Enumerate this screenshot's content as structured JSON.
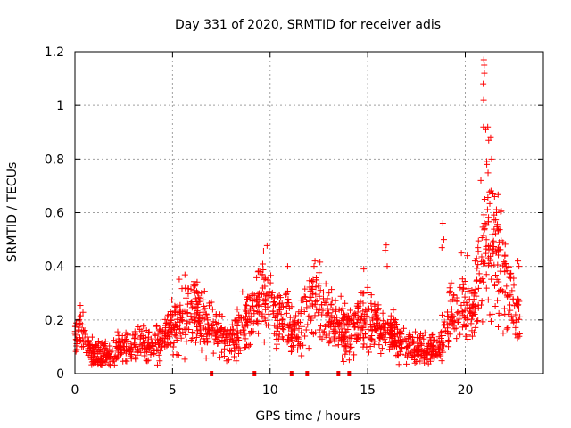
{
  "chart_data": {
    "type": "scatter",
    "title": "Day 331 of 2020, SRMTID for receiver adis",
    "xlabel": "GPS time / hours",
    "ylabel": "SRMTID / TECUs",
    "xlim": [
      0,
      24
    ],
    "ylim": [
      0,
      1.2
    ],
    "xticks": [
      {
        "value": 0,
        "label": "0"
      },
      {
        "value": 5,
        "label": "5"
      },
      {
        "value": 10,
        "label": "10"
      },
      {
        "value": 15,
        "label": "15"
      },
      {
        "value": 20,
        "label": "20"
      }
    ],
    "yticks": [
      {
        "value": 0,
        "label": "0"
      },
      {
        "value": 0.2,
        "label": "0.2"
      },
      {
        "value": 0.4,
        "label": "0.4"
      },
      {
        "value": 0.6,
        "label": "0.6"
      },
      {
        "value": 0.8,
        "label": "0.8"
      },
      {
        "value": 1.0,
        "label": "1"
      },
      {
        "value": 1.2,
        "label": "1.2"
      }
    ],
    "grid": true,
    "marker": "plus",
    "color": "#ff0000",
    "profile": [
      {
        "x": 0.0,
        "y": 0.13
      },
      {
        "x": 0.3,
        "y": 0.18
      },
      {
        "x": 0.5,
        "y": 0.14
      },
      {
        "x": 0.8,
        "y": 0.08
      },
      {
        "x": 1.5,
        "y": 0.07
      },
      {
        "x": 2.5,
        "y": 0.09
      },
      {
        "x": 3.5,
        "y": 0.12
      },
      {
        "x": 4.3,
        "y": 0.1
      },
      {
        "x": 5.0,
        "y": 0.17
      },
      {
        "x": 5.6,
        "y": 0.22
      },
      {
        "x": 6.2,
        "y": 0.24
      },
      {
        "x": 6.6,
        "y": 0.18
      },
      {
        "x": 7.3,
        "y": 0.15
      },
      {
        "x": 8.0,
        "y": 0.12
      },
      {
        "x": 8.7,
        "y": 0.18
      },
      {
        "x": 9.2,
        "y": 0.23
      },
      {
        "x": 9.6,
        "y": 0.3
      },
      {
        "x": 10.2,
        "y": 0.22
      },
      {
        "x": 10.8,
        "y": 0.2
      },
      {
        "x": 11.4,
        "y": 0.15
      },
      {
        "x": 12.0,
        "y": 0.25
      },
      {
        "x": 12.5,
        "y": 0.28
      },
      {
        "x": 13.0,
        "y": 0.2
      },
      {
        "x": 13.6,
        "y": 0.17
      },
      {
        "x": 14.2,
        "y": 0.15
      },
      {
        "x": 14.8,
        "y": 0.22
      },
      {
        "x": 15.3,
        "y": 0.19
      },
      {
        "x": 15.9,
        "y": 0.15
      },
      {
        "x": 16.6,
        "y": 0.12
      },
      {
        "x": 17.3,
        "y": 0.1
      },
      {
        "x": 18.0,
        "y": 0.09
      },
      {
        "x": 18.6,
        "y": 0.09
      },
      {
        "x": 18.9,
        "y": 0.15
      },
      {
        "x": 19.3,
        "y": 0.22
      },
      {
        "x": 19.8,
        "y": 0.25
      },
      {
        "x": 20.3,
        "y": 0.2
      },
      {
        "x": 20.8,
        "y": 0.35
      },
      {
        "x": 21.1,
        "y": 0.55
      },
      {
        "x": 21.4,
        "y": 0.5
      },
      {
        "x": 21.8,
        "y": 0.4
      },
      {
        "x": 22.2,
        "y": 0.3
      },
      {
        "x": 22.6,
        "y": 0.22
      },
      {
        "x": 22.8,
        "y": 0.2
      }
    ],
    "data_range": [
      0.0,
      22.8
    ],
    "n_points": 1700,
    "extreme_points": [
      {
        "x": 20.95,
        "y": 1.17
      },
      {
        "x": 20.97,
        "y": 1.15
      },
      {
        "x": 20.98,
        "y": 1.12
      },
      {
        "x": 20.92,
        "y": 1.08
      },
      {
        "x": 20.94,
        "y": 1.02
      },
      {
        "x": 20.93,
        "y": 0.92
      },
      {
        "x": 21.05,
        "y": 0.91
      },
      {
        "x": 21.15,
        "y": 0.92
      },
      {
        "x": 21.2,
        "y": 0.87
      },
      {
        "x": 21.3,
        "y": 0.88
      },
      {
        "x": 21.35,
        "y": 0.8
      },
      {
        "x": 21.1,
        "y": 0.78
      },
      {
        "x": 21.4,
        "y": 0.67
      },
      {
        "x": 21.5,
        "y": 0.66
      },
      {
        "x": 20.8,
        "y": 0.72
      },
      {
        "x": 21.6,
        "y": 0.6
      },
      {
        "x": 21.0,
        "y": 0.65
      },
      {
        "x": 18.85,
        "y": 0.56
      },
      {
        "x": 18.9,
        "y": 0.5
      },
      {
        "x": 18.8,
        "y": 0.47
      },
      {
        "x": 15.95,
        "y": 0.48
      },
      {
        "x": 15.9,
        "y": 0.46
      },
      {
        "x": 16.0,
        "y": 0.4
      },
      {
        "x": 12.3,
        "y": 0.42
      },
      {
        "x": 12.25,
        "y": 0.4
      },
      {
        "x": 10.9,
        "y": 0.4
      },
      {
        "x": 14.8,
        "y": 0.39
      },
      {
        "x": 9.5,
        "y": 0.38
      },
      {
        "x": 9.6,
        "y": 0.37
      },
      {
        "x": 22.7,
        "y": 0.42
      },
      {
        "x": 22.75,
        "y": 0.4
      },
      {
        "x": 20.5,
        "y": 0.42
      },
      {
        "x": 20.1,
        "y": 0.44
      },
      {
        "x": 19.8,
        "y": 0.45
      }
    ],
    "zero_markers": [
      7.0,
      9.2,
      11.1,
      11.9,
      13.5,
      14.05
    ]
  }
}
